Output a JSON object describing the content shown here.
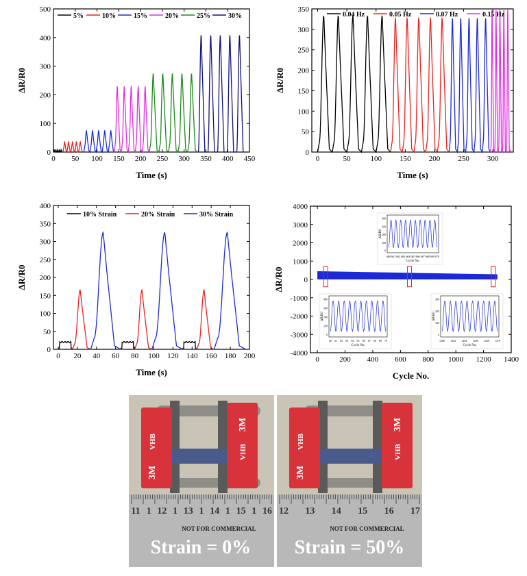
{
  "colors": {
    "black": "#000000",
    "red": "#e8231f",
    "blue": "#1c2ad6",
    "magenta": "#e02ee0",
    "green": "#1d8a1d",
    "navy": "#10107a",
    "tape_red": "#d8323a",
    "ruler": "#b8b8b8"
  },
  "chart_data": [
    {
      "id": "a",
      "type": "line",
      "title": "",
      "xlabel": "Time (s)",
      "ylabel": "ΔR/R0",
      "xlim": [
        0,
        450
      ],
      "ylim": [
        0,
        500
      ],
      "xticks": [
        0,
        50,
        100,
        150,
        200,
        250,
        300,
        350,
        400,
        450
      ],
      "yticks": [
        0,
        100,
        200,
        300,
        400,
        500
      ],
      "legend_position": "top",
      "series": [
        {
          "name": "5%",
          "color": "#000000",
          "t_start": 0,
          "t_end": 20,
          "period": 4.0,
          "peak": 8,
          "base": 2
        },
        {
          "name": "10%",
          "color": "#e8231f",
          "t_start": 22,
          "t_end": 67,
          "period": 9.0,
          "peak": 36,
          "base": 12
        },
        {
          "name": "15%",
          "color": "#1c2ad6",
          "t_start": 70,
          "t_end": 140,
          "period": 14.0,
          "peak": 75,
          "base": 20
        },
        {
          "name": "20%",
          "color": "#e02ee0",
          "t_start": 140,
          "t_end": 220,
          "period": 16.0,
          "peak": 230,
          "base": 30
        },
        {
          "name": "25%",
          "color": "#1d8a1d",
          "t_start": 220,
          "t_end": 330,
          "period": 22.0,
          "peak": 275,
          "base": 25
        },
        {
          "name": "30%",
          "color": "#10107a",
          "t_start": 330,
          "t_end": 440,
          "period": 22.0,
          "peak": 410,
          "base": 0
        }
      ]
    },
    {
      "id": "b",
      "type": "line",
      "title": "",
      "xlabel": "Time (s)",
      "ylabel": "ΔR/R0",
      "xlim": [
        -10,
        335
      ],
      "ylim": [
        0,
        350
      ],
      "xticks": [
        0,
        50,
        100,
        150,
        200,
        250,
        300
      ],
      "yticks": [
        0,
        50,
        100,
        150,
        200,
        250,
        300,
        350
      ],
      "legend_position": "top",
      "series": [
        {
          "name": "0.04 Hz",
          "color": "#000000",
          "t_start": 0,
          "t_end": 125,
          "period": 25.0,
          "peak": 335,
          "base": 25
        },
        {
          "name": "0.05 Hz",
          "color": "#e8231f",
          "t_start": 125,
          "t_end": 225,
          "period": 20.0,
          "peak": 330,
          "base": 25
        },
        {
          "name": "0.07 Hz",
          "color": "#1c2ad6",
          "t_start": 225,
          "t_end": 296,
          "period": 14.2,
          "peak": 330,
          "base": 25
        },
        {
          "name": "0.15 Hz",
          "color": "#e02ee0",
          "t_start": 296,
          "t_end": 330,
          "period": 6.7,
          "peak": 350,
          "base": 10
        }
      ]
    },
    {
      "id": "c",
      "type": "line",
      "title": "",
      "xlabel": "Time (s)",
      "ylabel": "ΔR/R0",
      "xlim": [
        -5,
        200
      ],
      "ylim": [
        0,
        400
      ],
      "xticks": [
        0,
        20,
        40,
        60,
        80,
        100,
        120,
        140,
        160,
        180,
        200
      ],
      "yticks": [
        0,
        50,
        100,
        150,
        200,
        250,
        300,
        350,
        400
      ],
      "legend_position": "top",
      "series": [
        {
          "name": "10% Strain",
          "color": "#000000",
          "peak": 25
        },
        {
          "name": "20% Strain",
          "color": "#e8231f",
          "peak": 165
        },
        {
          "name": "30% Strain",
          "color": "#1c2ad6",
          "peak": 325
        }
      ],
      "segments": [
        {
          "series": 0,
          "t": [
            0,
            15
          ]
        },
        {
          "series": 1,
          "t": [
            15,
            34
          ]
        },
        {
          "series": 2,
          "t": [
            34,
            65
          ]
        },
        {
          "series": 0,
          "t": [
            65,
            80
          ]
        },
        {
          "series": 1,
          "t": [
            80,
            98
          ]
        },
        {
          "series": 2,
          "t": [
            98,
            130
          ]
        },
        {
          "series": 0,
          "t": [
            130,
            145
          ]
        },
        {
          "series": 1,
          "t": [
            145,
            163
          ]
        },
        {
          "series": 2,
          "t": [
            163,
            196
          ]
        }
      ]
    },
    {
      "id": "d",
      "type": "line",
      "title": "",
      "xlabel": "Cycle No.",
      "ylabel": "ΔR/R0",
      "xlim": [
        -50,
        1400
      ],
      "ylim": [
        -4000,
        4000
      ],
      "xticks": [
        0,
        200,
        400,
        600,
        800,
        1000,
        1200,
        1400
      ],
      "yticks": [
        -4000,
        -3000,
        -2000,
        -1000,
        0,
        1000,
        2000,
        3000,
        4000
      ],
      "band": {
        "x": [
          0,
          1300
        ],
        "y_top_start": 450,
        "y_top_end": 280,
        "y_bottom": 0,
        "color": "#1c2ad6"
      },
      "highlight_boxes": [
        {
          "x": 60
        },
        {
          "x": 665
        },
        {
          "x": 1270
        }
      ],
      "insets": [
        {
          "position": "top-center",
          "xlabel": "Cycle No.",
          "ylabel": "ΔR/R0",
          "xticks": [
            "660",
            "661",
            "662",
            "663",
            "664",
            "665",
            "666",
            "667",
            "668",
            "669",
            "670"
          ],
          "yticks": [
            "0",
            "100",
            "200",
            "300",
            "400"
          ]
        },
        {
          "position": "bottom-left",
          "xlabel": "Cycle No.",
          "ylabel": "ΔR/R0",
          "xticks": [
            "60",
            "61",
            "62",
            "63",
            "64",
            "65",
            "66",
            "67",
            "68",
            "69",
            "70"
          ],
          "yticks": [
            "0",
            "100",
            "200",
            "300",
            "400"
          ]
        },
        {
          "position": "bottom-right",
          "xlabel": "Cycle No.",
          "ylabel": "ΔR/R0",
          "xticks": [
            "1260",
            "1262",
            "1264",
            "1266",
            "1268",
            "1270"
          ],
          "yticks": [
            "0",
            "100",
            "200",
            "300"
          ]
        }
      ]
    }
  ],
  "photos": {
    "left_caption": "Strain = 0%",
    "right_caption": "Strain = 50%",
    "ruler_numbers_left": [
      "11",
      "1",
      "12",
      "1",
      "13",
      "1",
      "14",
      "1",
      "15",
      "1",
      "16"
    ],
    "ruler_numbers_right": [
      "12",
      "13",
      "14",
      "15",
      "16",
      "17"
    ],
    "ruler_label": "NOT FOR COMMERCIAL",
    "tape_logo": "3M",
    "tape_brand": "VHB"
  }
}
